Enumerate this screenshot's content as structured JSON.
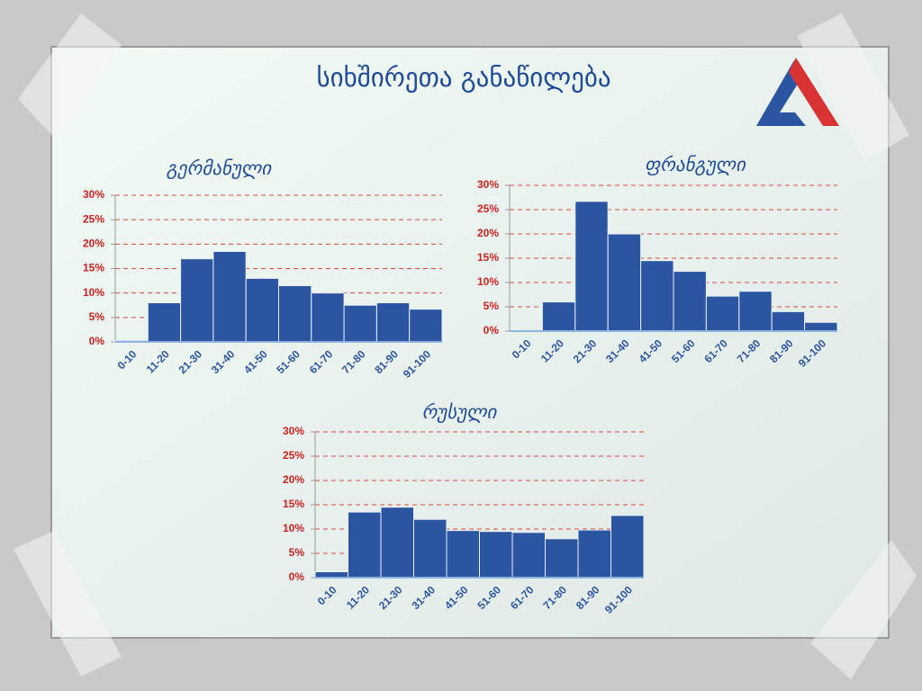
{
  "title": "სიხშირეთა განაწილება",
  "chart_data": [
    {
      "type": "bar",
      "title": "გერმანული",
      "categories": [
        "0-10",
        "11-20",
        "21-30",
        "31-40",
        "41-50",
        "51-60",
        "61-70",
        "71-80",
        "81-90",
        "91-100"
      ],
      "values": [
        0.3,
        8,
        17,
        18.5,
        13,
        11.5,
        10,
        7.5,
        8,
        6.7
      ],
      "color": "#2b55a0",
      "ylim": [
        0,
        30
      ],
      "yticks": [
        {
          "value": 0,
          "label": "0%"
        },
        {
          "value": 5,
          "label": "5%"
        },
        {
          "value": 10,
          "label": "10%"
        },
        {
          "value": 15,
          "label": "15%"
        },
        {
          "value": 20,
          "label": "20%"
        },
        {
          "value": 25,
          "label": "25%"
        },
        {
          "value": 30,
          "label": "30%"
        }
      ],
      "grid": true
    },
    {
      "type": "bar",
      "title": "ფრანგული",
      "categories": [
        "0-10",
        "11-20",
        "21-30",
        "31-40",
        "41-50",
        "51-60",
        "61-70",
        "71-80",
        "81-90",
        "91-100"
      ],
      "values": [
        0,
        6,
        26.7,
        20,
        14.5,
        12.3,
        7.2,
        8.2,
        4,
        1.8
      ],
      "color": "#2b55a0",
      "ylim": [
        0,
        30
      ],
      "yticks": [
        {
          "value": 0,
          "label": "0%"
        },
        {
          "value": 5,
          "label": "5%"
        },
        {
          "value": 10,
          "label": "10%"
        },
        {
          "value": 15,
          "label": "15%"
        },
        {
          "value": 20,
          "label": "20%"
        },
        {
          "value": 25,
          "label": "25%"
        },
        {
          "value": 30,
          "label": "30%"
        }
      ],
      "grid": true
    },
    {
      "type": "bar",
      "title": "რუსული",
      "categories": [
        "0-10",
        "11-20",
        "21-30",
        "31-40",
        "41-50",
        "51-60",
        "61-70",
        "71-80",
        "81-90",
        "91-100"
      ],
      "values": [
        1.2,
        13.5,
        14.5,
        12,
        9.7,
        9.5,
        9.3,
        8,
        9.8,
        12.8
      ],
      "color": "#2b55a0",
      "ylim": [
        0,
        30
      ],
      "yticks": [
        {
          "value": 0,
          "label": "0%"
        },
        {
          "value": 5,
          "label": "5%"
        },
        {
          "value": 10,
          "label": "10%"
        },
        {
          "value": 15,
          "label": "15%"
        },
        {
          "value": 20,
          "label": "20%"
        },
        {
          "value": 25,
          "label": "25%"
        },
        {
          "value": 30,
          "label": "30%"
        }
      ],
      "grid": true
    }
  ]
}
